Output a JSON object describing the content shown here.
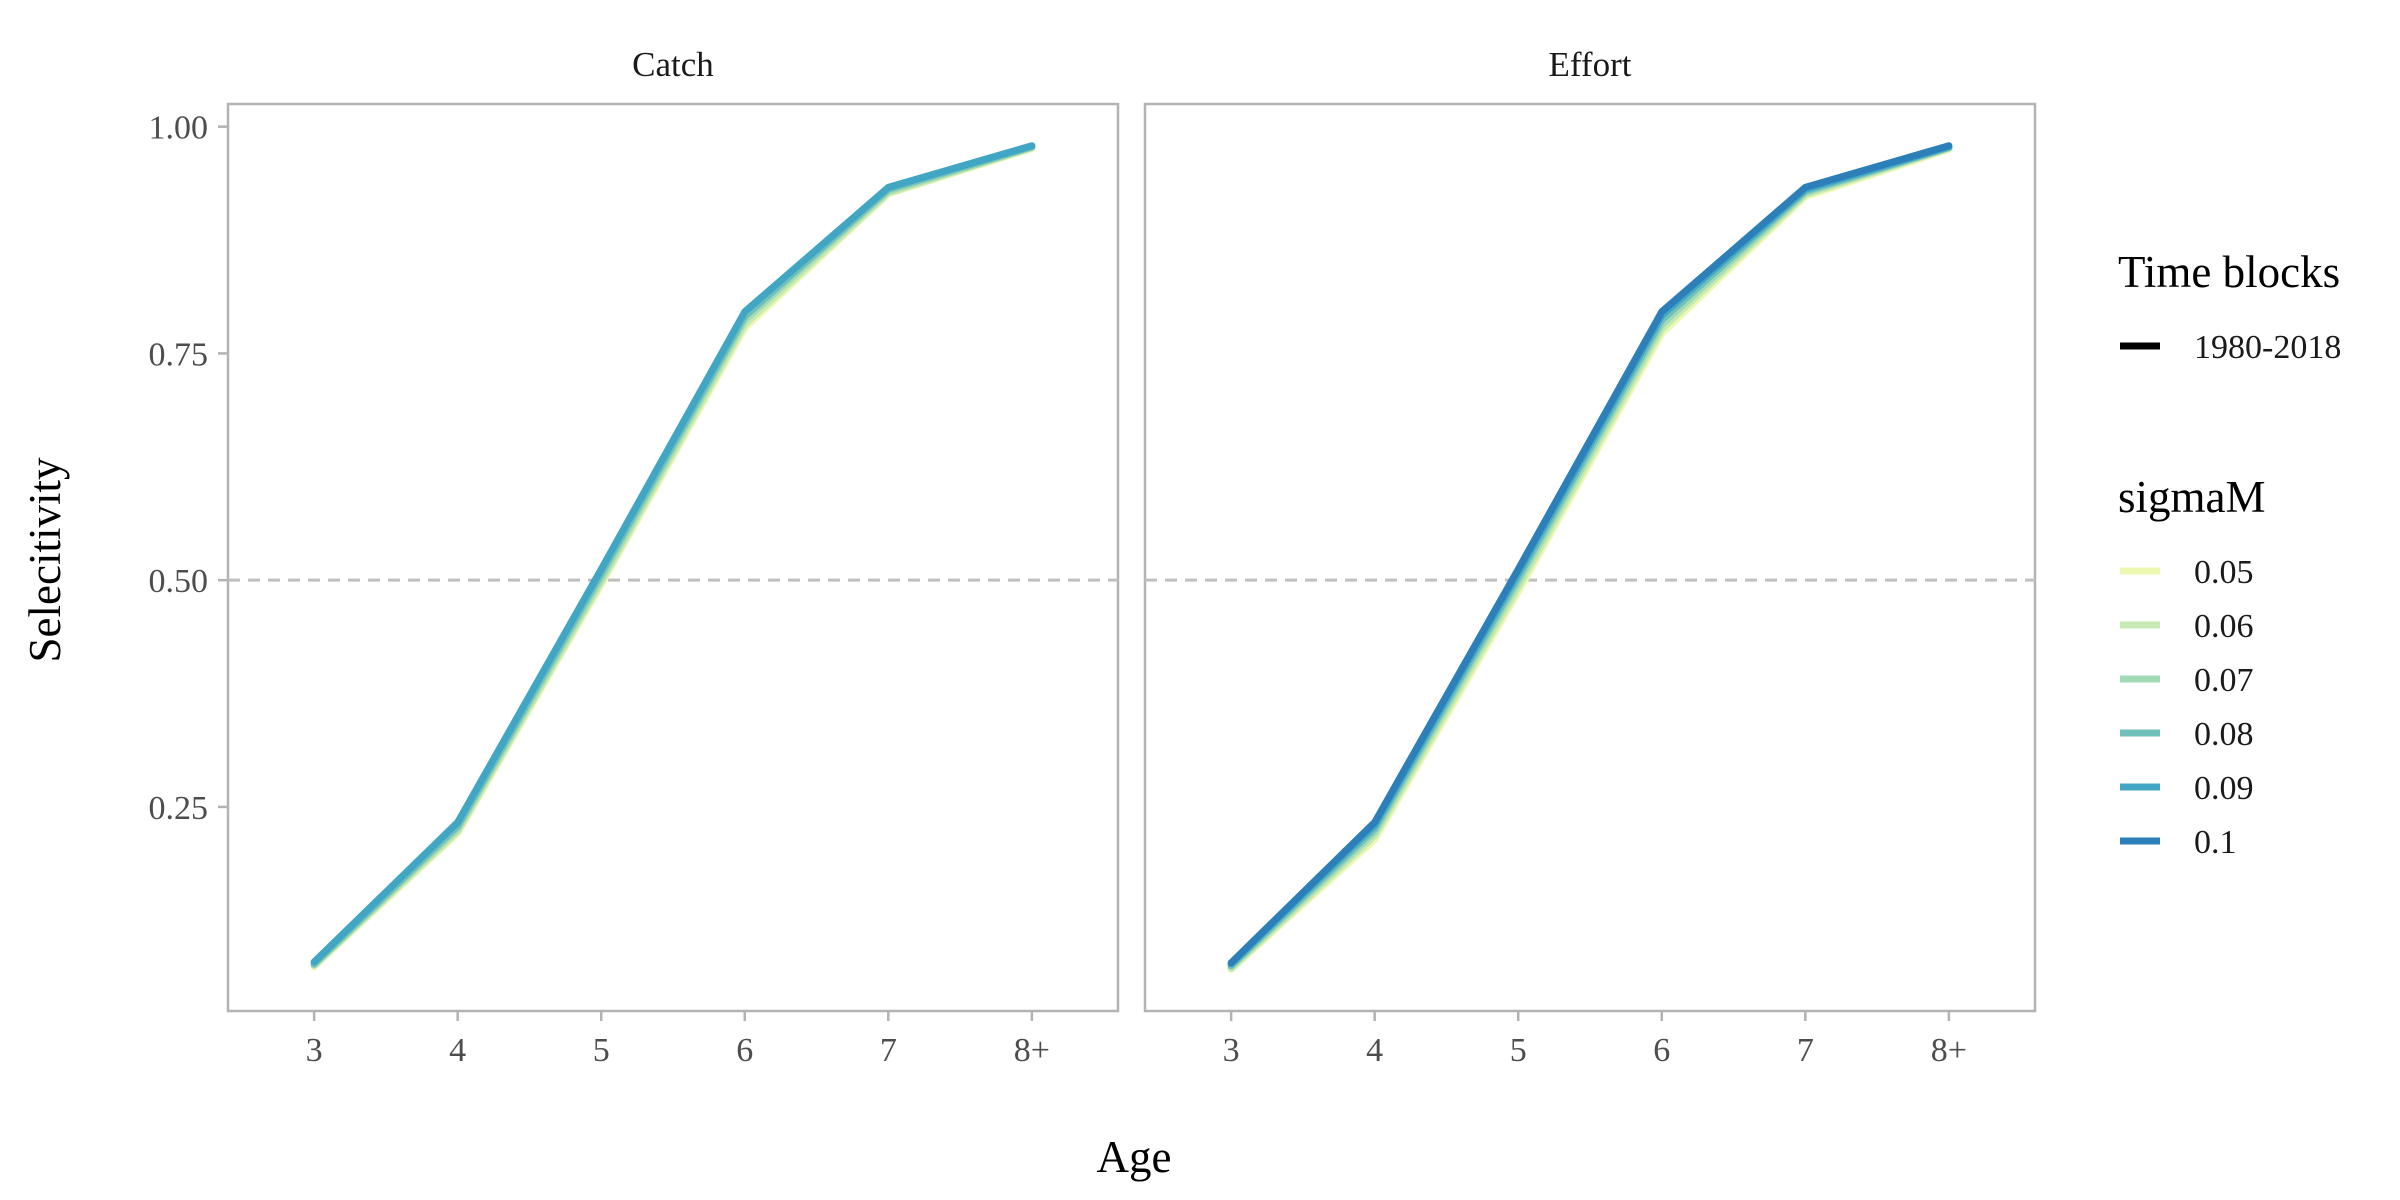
{
  "chart_data": {
    "type": "line",
    "xlabel": "Age",
    "ylabel": "Selecitivity",
    "categories": [
      "3",
      "4",
      "5",
      "6",
      "7",
      "8+"
    ],
    "yticks": [
      0.25,
      0.5,
      0.75,
      1.0
    ],
    "ytick_labels": [
      "0.25",
      "0.50",
      "0.75",
      "1.00"
    ],
    "ylim": [
      0.025,
      1.025
    ],
    "reference_line": {
      "y": 0.5,
      "style": "dashed",
      "color": "#bfbfbf"
    },
    "grid": false,
    "legend_position": "right",
    "legends": [
      {
        "title": "Time blocks",
        "entries": [
          {
            "label": "1980-2018",
            "color": "#000000"
          }
        ]
      },
      {
        "title": "sigmaM",
        "entries": [
          {
            "label": "0.05",
            "color": "#edf8b1"
          },
          {
            "label": "0.06",
            "color": "#c7e9b4"
          },
          {
            "label": "0.07",
            "color": "#a1dab4"
          },
          {
            "label": "0.08",
            "color": "#6fbfbb"
          },
          {
            "label": "0.09",
            "color": "#41a6c4"
          },
          {
            "label": "0.1",
            "color": "#2c7fb8"
          }
        ]
      }
    ],
    "panels": [
      {
        "title": "Catch",
        "series": [
          {
            "name": "0.05",
            "values": [
              0.074,
              0.221,
              0.495,
              0.778,
              0.926,
              0.976
            ]
          },
          {
            "name": "0.06",
            "values": [
              0.075,
              0.223,
              0.498,
              0.782,
              0.927,
              0.977
            ]
          },
          {
            "name": "0.07",
            "values": [
              0.076,
              0.226,
              0.502,
              0.787,
              0.929,
              0.977
            ]
          },
          {
            "name": "0.08",
            "values": [
              0.077,
              0.229,
              0.507,
              0.791,
              0.931,
              0.978
            ]
          },
          {
            "name": "0.09",
            "values": [
              0.079,
              0.233,
              0.512,
              0.796,
              0.933,
              0.979
            ]
          }
        ]
      },
      {
        "title": "Effort",
        "series": [
          {
            "name": "0.05",
            "values": [
              0.071,
              0.214,
              0.487,
              0.772,
              0.923,
              0.975
            ]
          },
          {
            "name": "0.06",
            "values": [
              0.072,
              0.218,
              0.492,
              0.777,
              0.925,
              0.976
            ]
          },
          {
            "name": "0.07",
            "values": [
              0.074,
              0.222,
              0.498,
              0.782,
              0.927,
              0.977
            ]
          },
          {
            "name": "0.08",
            "values": [
              0.075,
              0.226,
              0.503,
              0.787,
              0.929,
              0.977
            ]
          },
          {
            "name": "0.09",
            "values": [
              0.077,
              0.23,
              0.508,
              0.792,
              0.931,
              0.978
            ]
          },
          {
            "name": "0.1",
            "values": [
              0.078,
              0.233,
              0.512,
              0.796,
              0.933,
              0.979
            ]
          }
        ]
      }
    ]
  }
}
